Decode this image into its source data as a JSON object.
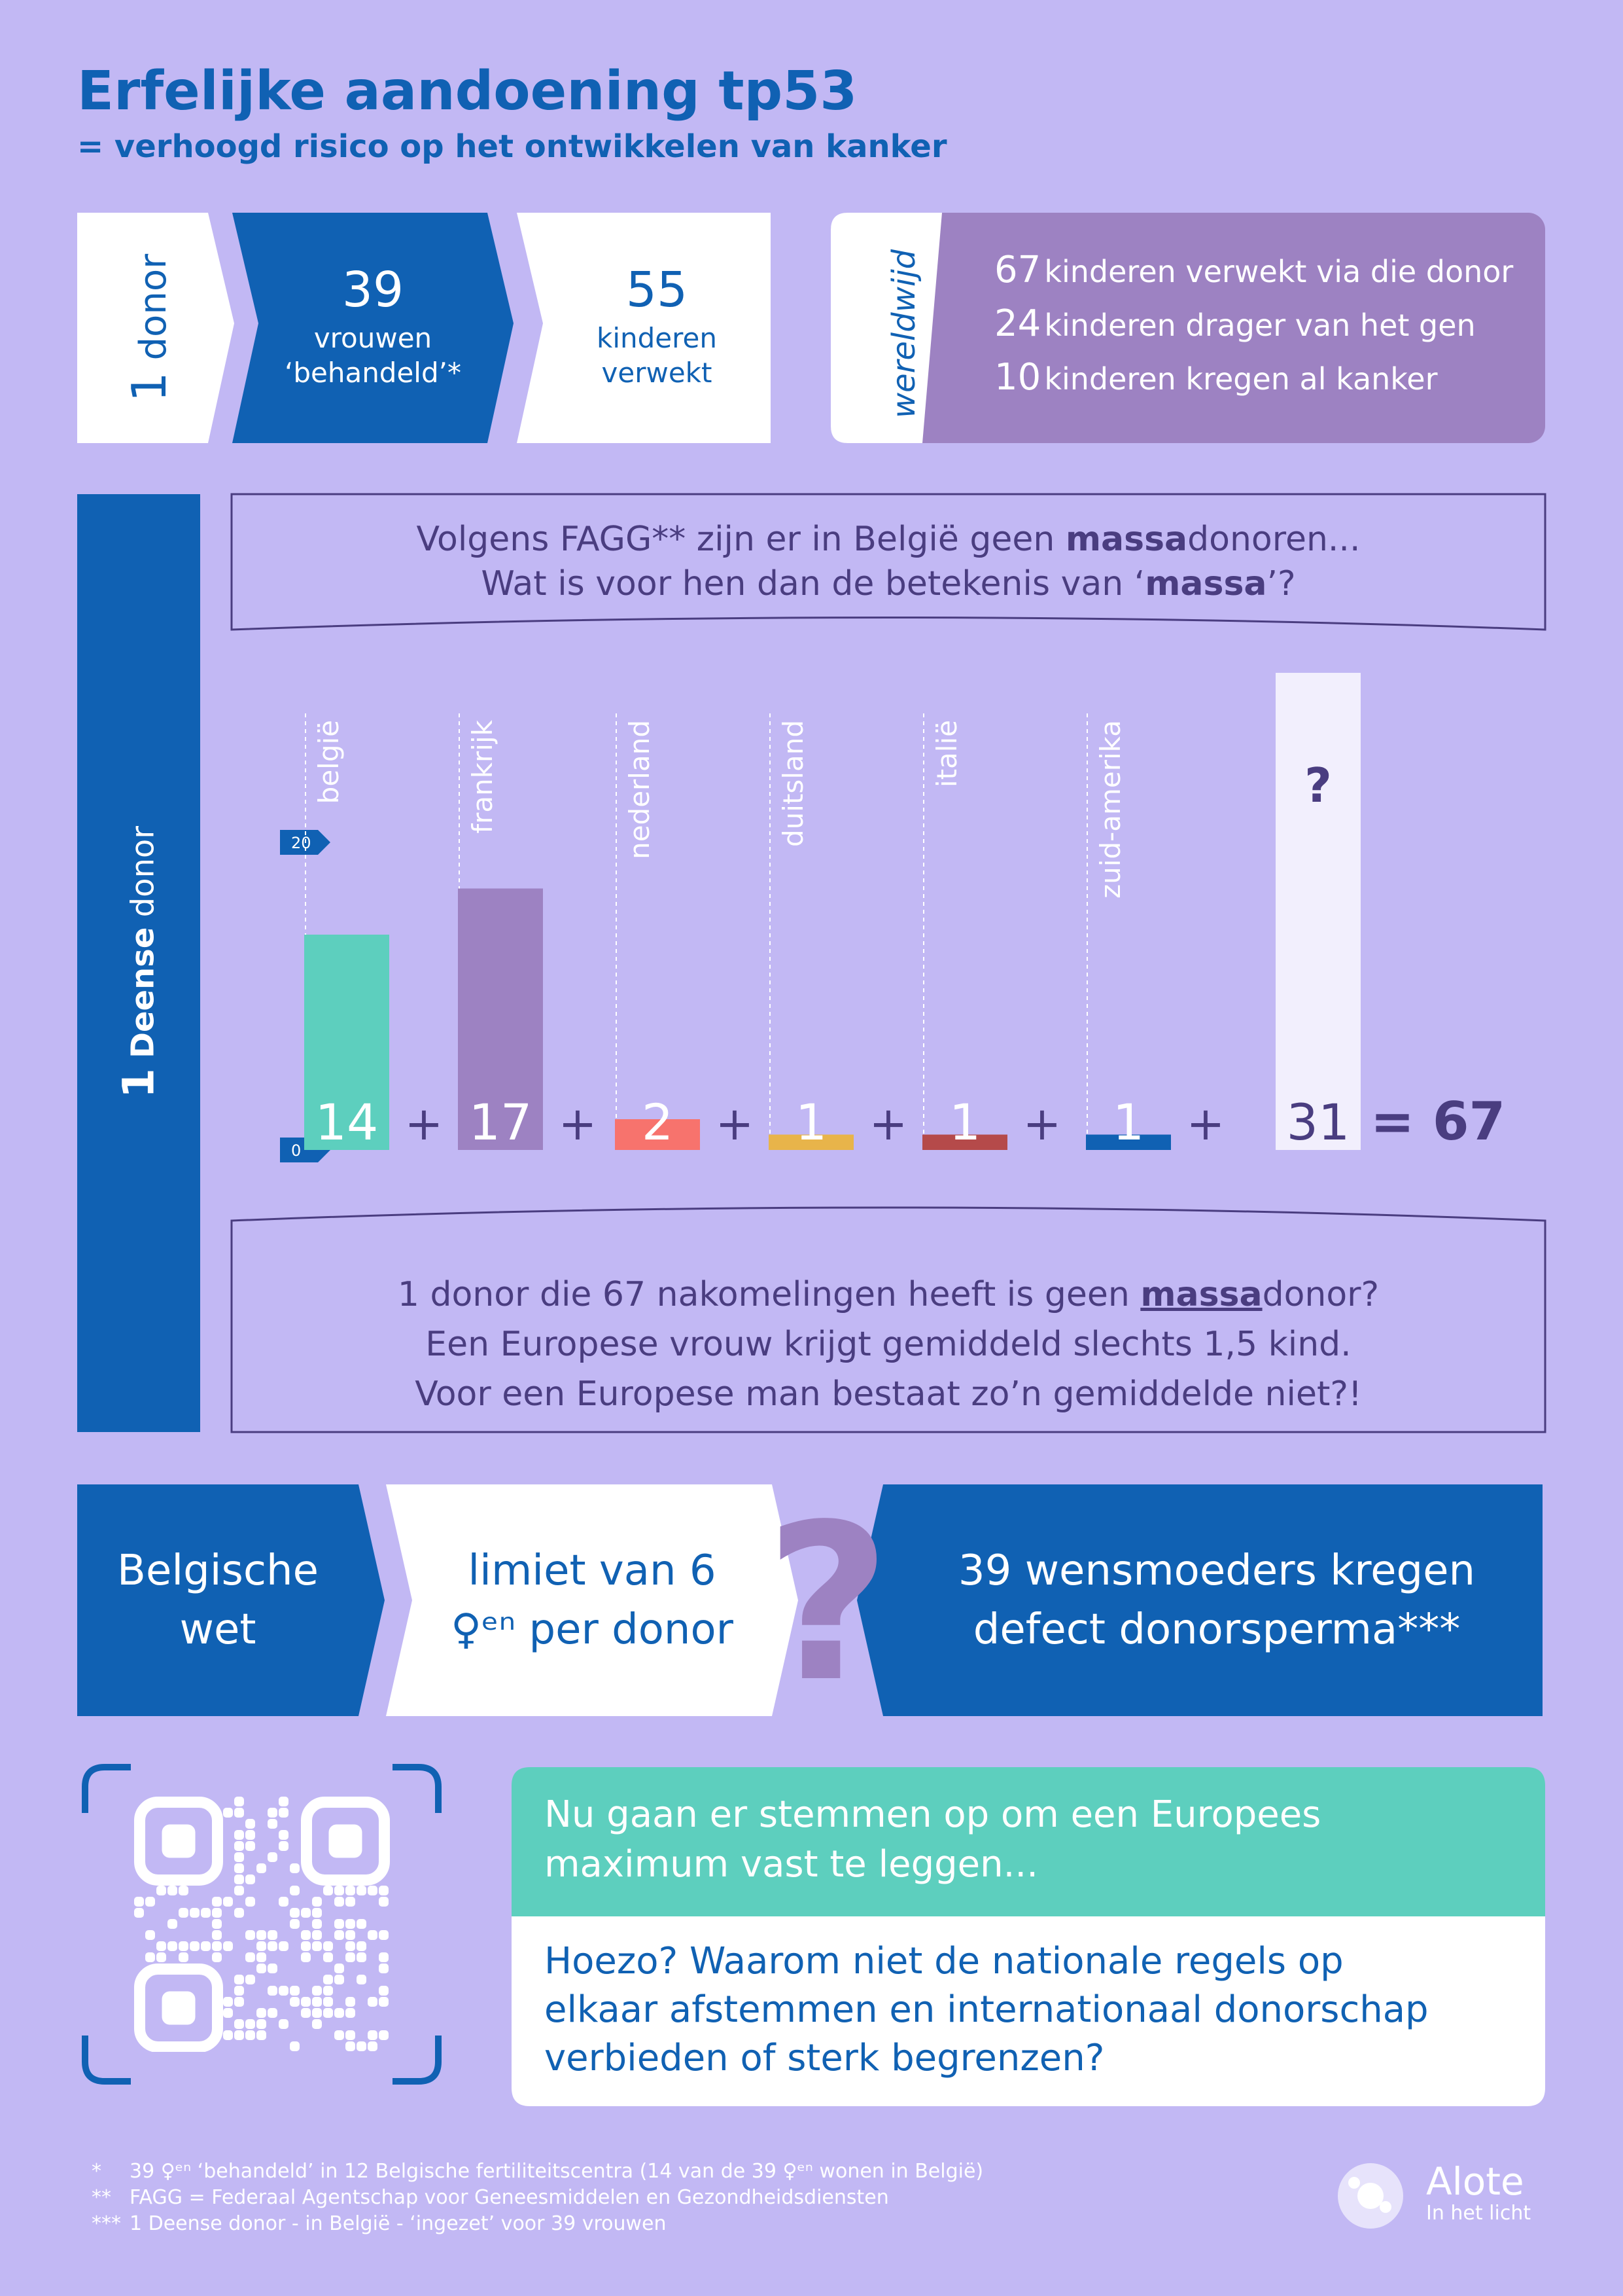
{
  "header": {
    "title": "Erfelijke aandoening tp53",
    "subtitle": "= verhoogd risico op het ontwikkelen van kanker"
  },
  "flow": {
    "donor_num": "1",
    "donor_label": "donor",
    "women_num": "39",
    "women_line1": "vrouwen",
    "women_line2": "‘behandeld’*",
    "children_num": "55",
    "children_line1": "kinderen",
    "children_line2": "verwekt"
  },
  "worldwide": {
    "label": "wereldwijd",
    "items": [
      {
        "num": "67",
        "text": "kinderen verwekt via die donor"
      },
      {
        "num": "24",
        "text": "kinderen drager van het gen"
      },
      {
        "num": "10",
        "text": "kinderen kregen al kanker"
      }
    ]
  },
  "side_label": {
    "num": "1",
    "bold": "Deense",
    "rest": "donor"
  },
  "question_box": {
    "line1_a": "Volgens FAGG** zijn er in België geen ",
    "line1_b": "massa",
    "line1_c": "donoren...",
    "line2_a": "Wat is voor hen dan de betekenis van ‘",
    "line2_b": "massa",
    "line2_c": "’?"
  },
  "chart_data": {
    "type": "bar",
    "categories": [
      "belgië",
      "frankrijk",
      "nederland",
      "duitsland",
      "italië",
      "zuid-amerika"
    ],
    "values": [
      14,
      17,
      2,
      1,
      1,
      1
    ],
    "labels": [
      "14",
      "17",
      "2",
      "1",
      "1",
      "1"
    ],
    "colors": [
      "#5dcfbe",
      "#9d82c2",
      "#f7736d",
      "#e8b44a",
      "#b54a4a",
      "#1061b3"
    ],
    "unknown_label": "?",
    "unknown_value": "31",
    "total": "= 67",
    "ylim": [
      0,
      20
    ],
    "yticks": [
      "20",
      "0"
    ],
    "operator": "+"
  },
  "conclusion_box": {
    "line1_a": "1 donor die 67 nakomelingen heeft is geen ",
    "line1_b": "massa",
    "line1_c": "donor?",
    "line2": "Een Europese vrouw krijgt gemiddeld slechts 1,5 kind.",
    "line3": "Voor een Europese man bestaat zo’n gemiddelde niet?!"
  },
  "law": {
    "box1_line1": "Belgische",
    "box1_line2": "wet",
    "box2_line1": "limiet van 6",
    "box2_line2": "♀ᵉⁿ per donor",
    "qmark": "?",
    "box3_line1": "39 wensmoeders kregen",
    "box3_line2": "defect donorsperma***"
  },
  "vote": {
    "line1": "Nu gaan er stemmen op om een Europees",
    "line2": "maximum vast te leggen...",
    "q1": "Hoezo? Waarom niet de nationale regels op",
    "q2": "elkaar afstemmen en internationaal donorschap",
    "q3": "verbieden of sterk begrenzen?"
  },
  "footnotes": [
    {
      "mark": "*",
      "text": "39 ♀ᵉⁿ ‘behandeld’ in 12 Belgische fertiliteitscentra (14 van de 39 ♀ᵉⁿ wonen in België)"
    },
    {
      "mark": "**",
      "text": "FAGG = Federaal Agentschap voor Geneesmiddelen en Gezondheidsdiensten"
    },
    {
      "mark": "***",
      "text": "1 Deense donor - in België - ‘ingezet’ voor 39 vrouwen"
    }
  ],
  "logo": {
    "name": "Alote",
    "tagline": "In het licht"
  },
  "colors": {
    "background": "#c2b8f4",
    "blue": "#1061b3",
    "purple": "#9d82c2",
    "teal": "#5dcfbe",
    "dark_text": "#4a3d80"
  }
}
